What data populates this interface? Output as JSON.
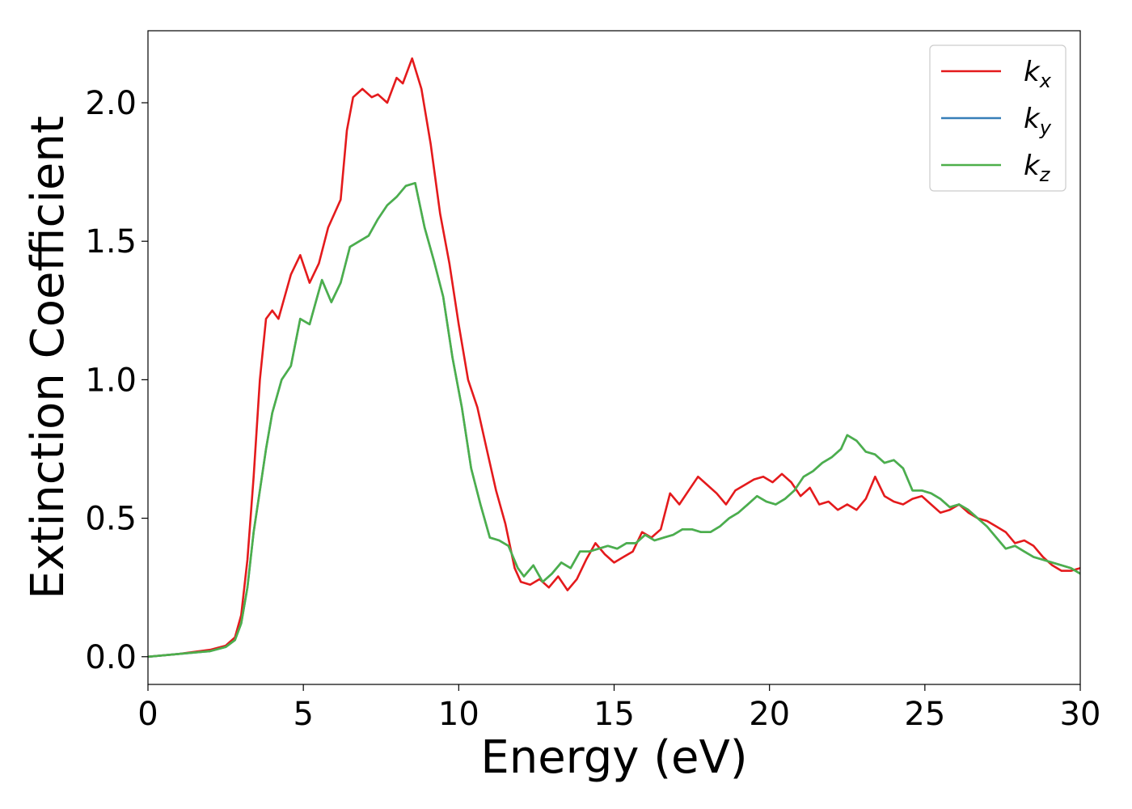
{
  "chart_data": {
    "type": "line",
    "xlabel": "Energy (eV)",
    "ylabel": "Extinction Coefficient",
    "xlim": [
      0,
      30
    ],
    "ylim": [
      -0.1,
      2.26
    ],
    "xticks": [
      "0",
      "5",
      "10",
      "15",
      "20",
      "25",
      "30"
    ],
    "yticks": [
      "0.0",
      "0.5",
      "1.0",
      "1.5",
      "2.0"
    ],
    "grid": false,
    "legend": {
      "position": "top-right"
    },
    "series": [
      {
        "name": "k",
        "subscript": "x",
        "color": "#e41a1c",
        "x": [
          0,
          1,
          2,
          2.5,
          2.8,
          3.0,
          3.2,
          3.4,
          3.6,
          3.8,
          4.0,
          4.2,
          4.4,
          4.6,
          4.9,
          5.2,
          5.5,
          5.8,
          6.0,
          6.2,
          6.4,
          6.6,
          6.9,
          7.2,
          7.4,
          7.7,
          8.0,
          8.2,
          8.5,
          8.8,
          9.1,
          9.4,
          9.7,
          10.0,
          10.3,
          10.6,
          10.9,
          11.2,
          11.5,
          11.8,
          12.0,
          12.3,
          12.6,
          12.9,
          13.2,
          13.5,
          13.8,
          14.1,
          14.4,
          14.7,
          15.0,
          15.3,
          15.6,
          15.9,
          16.2,
          16.5,
          16.8,
          17.1,
          17.4,
          17.7,
          18.0,
          18.3,
          18.6,
          18.9,
          19.2,
          19.5,
          19.8,
          20.1,
          20.4,
          20.7,
          21.0,
          21.3,
          21.6,
          21.9,
          22.2,
          22.5,
          22.8,
          23.1,
          23.4,
          23.7,
          24.0,
          24.3,
          24.6,
          24.9,
          25.2,
          25.5,
          25.8,
          26.1,
          26.4,
          26.7,
          27.0,
          27.3,
          27.6,
          27.9,
          28.2,
          28.5,
          28.8,
          29.1,
          29.4,
          29.7,
          30.0
        ],
        "y": [
          0.0,
          0.01,
          0.025,
          0.04,
          0.07,
          0.15,
          0.35,
          0.65,
          1.0,
          1.22,
          1.25,
          1.22,
          1.3,
          1.38,
          1.45,
          1.35,
          1.42,
          1.55,
          1.6,
          1.65,
          1.9,
          2.02,
          2.05,
          2.02,
          2.03,
          2.0,
          2.09,
          2.07,
          2.16,
          2.05,
          1.85,
          1.6,
          1.42,
          1.2,
          1.0,
          0.9,
          0.75,
          0.6,
          0.48,
          0.32,
          0.27,
          0.26,
          0.28,
          0.25,
          0.29,
          0.24,
          0.28,
          0.35,
          0.41,
          0.37,
          0.34,
          0.36,
          0.38,
          0.45,
          0.43,
          0.46,
          0.59,
          0.55,
          0.6,
          0.65,
          0.62,
          0.59,
          0.55,
          0.6,
          0.62,
          0.64,
          0.65,
          0.63,
          0.66,
          0.63,
          0.58,
          0.61,
          0.55,
          0.56,
          0.53,
          0.55,
          0.53,
          0.57,
          0.65,
          0.58,
          0.56,
          0.55,
          0.57,
          0.58,
          0.55,
          0.52,
          0.53,
          0.55,
          0.52,
          0.5,
          0.49,
          0.47,
          0.45,
          0.41,
          0.42,
          0.4,
          0.36,
          0.33,
          0.31,
          0.31,
          0.32
        ]
      },
      {
        "name": "k",
        "subscript": "y",
        "color": "#377eb8",
        "x": [
          0,
          1,
          2,
          2.5,
          2.8,
          3.0,
          3.2,
          3.4,
          3.6,
          3.8,
          4.0,
          4.3,
          4.6,
          4.9,
          5.2,
          5.4,
          5.6,
          5.9,
          6.2,
          6.5,
          6.8,
          7.1,
          7.4,
          7.7,
          8.0,
          8.3,
          8.6,
          8.9,
          9.2,
          9.5,
          9.8,
          10.1,
          10.4,
          10.7,
          11.0,
          11.3,
          11.6,
          11.9,
          12.1,
          12.4,
          12.7,
          13.0,
          13.3,
          13.6,
          13.9,
          14.2,
          14.5,
          14.8,
          15.1,
          15.4,
          15.7,
          16.0,
          16.3,
          16.6,
          16.9,
          17.2,
          17.5,
          17.8,
          18.1,
          18.4,
          18.7,
          19.0,
          19.3,
          19.6,
          19.9,
          20.2,
          20.5,
          20.8,
          21.1,
          21.4,
          21.7,
          22.0,
          22.3,
          22.5,
          22.8,
          23.1,
          23.4,
          23.7,
          24.0,
          24.3,
          24.6,
          24.9,
          25.2,
          25.5,
          25.8,
          26.1,
          26.4,
          26.7,
          27.0,
          27.3,
          27.6,
          27.9,
          28.2,
          28.5,
          28.8,
          29.1,
          29.4,
          29.7,
          30.0
        ],
        "y": [
          0.0,
          0.01,
          0.02,
          0.035,
          0.06,
          0.12,
          0.25,
          0.45,
          0.6,
          0.75,
          0.88,
          1.0,
          1.05,
          1.22,
          1.2,
          1.28,
          1.36,
          1.28,
          1.35,
          1.48,
          1.5,
          1.52,
          1.58,
          1.63,
          1.66,
          1.7,
          1.71,
          1.55,
          1.43,
          1.3,
          1.08,
          0.9,
          0.68,
          0.55,
          0.43,
          0.42,
          0.4,
          0.32,
          0.29,
          0.33,
          0.27,
          0.3,
          0.34,
          0.32,
          0.38,
          0.38,
          0.39,
          0.4,
          0.39,
          0.41,
          0.41,
          0.44,
          0.42,
          0.43,
          0.44,
          0.46,
          0.46,
          0.45,
          0.45,
          0.47,
          0.5,
          0.52,
          0.55,
          0.58,
          0.56,
          0.55,
          0.57,
          0.6,
          0.65,
          0.67,
          0.7,
          0.72,
          0.75,
          0.8,
          0.78,
          0.74,
          0.73,
          0.7,
          0.71,
          0.68,
          0.6,
          0.6,
          0.59,
          0.57,
          0.54,
          0.55,
          0.53,
          0.5,
          0.47,
          0.43,
          0.39,
          0.4,
          0.38,
          0.36,
          0.35,
          0.34,
          0.33,
          0.32,
          0.3
        ]
      },
      {
        "name": "k",
        "subscript": "z",
        "color": "#4daf4a",
        "x": [
          0,
          1,
          2,
          2.5,
          2.8,
          3.0,
          3.2,
          3.4,
          3.6,
          3.8,
          4.0,
          4.3,
          4.6,
          4.9,
          5.2,
          5.4,
          5.6,
          5.9,
          6.2,
          6.5,
          6.8,
          7.1,
          7.4,
          7.7,
          8.0,
          8.3,
          8.6,
          8.9,
          9.2,
          9.5,
          9.8,
          10.1,
          10.4,
          10.7,
          11.0,
          11.3,
          11.6,
          11.9,
          12.1,
          12.4,
          12.7,
          13.0,
          13.3,
          13.6,
          13.9,
          14.2,
          14.5,
          14.8,
          15.1,
          15.4,
          15.7,
          16.0,
          16.3,
          16.6,
          16.9,
          17.2,
          17.5,
          17.8,
          18.1,
          18.4,
          18.7,
          19.0,
          19.3,
          19.6,
          19.9,
          20.2,
          20.5,
          20.8,
          21.1,
          21.4,
          21.7,
          22.0,
          22.3,
          22.5,
          22.8,
          23.1,
          23.4,
          23.7,
          24.0,
          24.3,
          24.6,
          24.9,
          25.2,
          25.5,
          25.8,
          26.1,
          26.4,
          26.7,
          27.0,
          27.3,
          27.6,
          27.9,
          28.2,
          28.5,
          28.8,
          29.1,
          29.4,
          29.7,
          30.0
        ],
        "y": [
          0.0,
          0.01,
          0.02,
          0.035,
          0.06,
          0.12,
          0.25,
          0.45,
          0.6,
          0.75,
          0.88,
          1.0,
          1.05,
          1.22,
          1.2,
          1.28,
          1.36,
          1.28,
          1.35,
          1.48,
          1.5,
          1.52,
          1.58,
          1.63,
          1.66,
          1.7,
          1.71,
          1.55,
          1.43,
          1.3,
          1.08,
          0.9,
          0.68,
          0.55,
          0.43,
          0.42,
          0.4,
          0.32,
          0.29,
          0.33,
          0.27,
          0.3,
          0.34,
          0.32,
          0.38,
          0.38,
          0.39,
          0.4,
          0.39,
          0.41,
          0.41,
          0.44,
          0.42,
          0.43,
          0.44,
          0.46,
          0.46,
          0.45,
          0.45,
          0.47,
          0.5,
          0.52,
          0.55,
          0.58,
          0.56,
          0.55,
          0.57,
          0.6,
          0.65,
          0.67,
          0.7,
          0.72,
          0.75,
          0.8,
          0.78,
          0.74,
          0.73,
          0.7,
          0.71,
          0.68,
          0.6,
          0.6,
          0.59,
          0.57,
          0.54,
          0.55,
          0.53,
          0.5,
          0.47,
          0.43,
          0.39,
          0.4,
          0.38,
          0.36,
          0.35,
          0.34,
          0.33,
          0.32,
          0.3
        ]
      }
    ]
  }
}
